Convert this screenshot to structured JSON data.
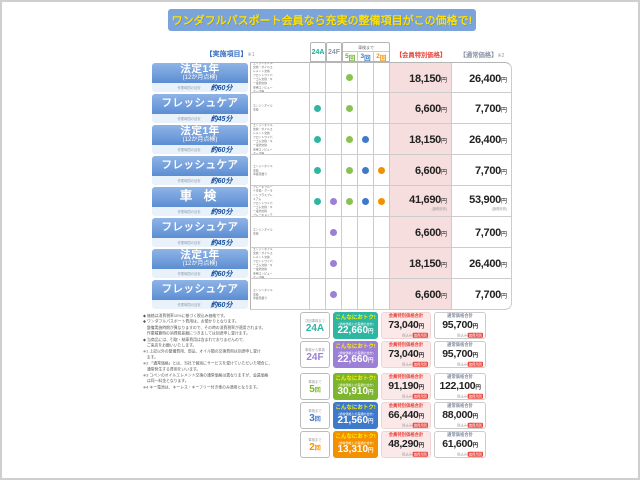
{
  "banner": {
    "text": "ワンダフルパスポート会員なら充実の整備項目がこの価格で!"
  },
  "yen": "円",
  "colors": {
    "banner_bg": "#7aa4da",
    "banner_text": "#ffe100",
    "accent_red": "#e8453c",
    "label_blue": "#5c8dd3",
    "member_price_bg": "#f7dede"
  },
  "dot_colors": [
    "#2eb6a3",
    "#9c7fd6",
    "#8cc152",
    "#3f79c9",
    "#f39000"
  ],
  "header": {
    "items_label": "【実施項目】",
    "items_note": "※1",
    "group_label": "車検まで",
    "cols": [
      {
        "num": "24A",
        "unit": "",
        "color": "#1fae9a"
      },
      {
        "num": "24F",
        "unit": "",
        "color": "#8e97a8"
      },
      {
        "num": "5",
        "unit": "回",
        "color": "#6fae2a"
      },
      {
        "num": "3",
        "unit": "回",
        "color": "#3f79c9"
      },
      {
        "num": "2",
        "unit": "回",
        "color": "#f39000"
      }
    ],
    "member_label": "【会員特別価格】",
    "normal_label": "【通常価格】",
    "normal_note": "※2"
  },
  "table": {
    "time_label": "作業時間の目安",
    "rows": [
      {
        "label": "法定1年",
        "sub": "(12か月点検)",
        "time": "約60分",
        "items": "エンジンオイル交換・オイルエレメント交換\nフロントワイパーゴム交換・キー電池交換\n専用コンピューター診断",
        "dots": [
          0,
          0,
          1,
          0,
          0
        ],
        "member": "18,150",
        "normal": "26,400",
        "note": ""
      },
      {
        "label": "フレッシュケア",
        "sub": "",
        "time": "約45分",
        "items": "エンジンオイル交換",
        "dots": [
          1,
          0,
          1,
          0,
          0
        ],
        "member": "6,600",
        "normal": "7,700",
        "note": ""
      },
      {
        "label": "法定1年",
        "sub": "(12か月点検)",
        "time": "約60分",
        "items": "エンジンオイル交換・オイルエレメント交換\nフロントワイパーゴム交換・キー電池交換\n専用コンピューター診断",
        "dots": [
          1,
          0,
          1,
          1,
          0
        ],
        "member": "18,150",
        "normal": "26,400",
        "note": ""
      },
      {
        "label": "フレッシュケア",
        "sub": "",
        "time": "約60分",
        "items": "エンジンオイル交換\n車検見積り",
        "dots": [
          1,
          0,
          1,
          1,
          1
        ],
        "member": "6,600",
        "normal": "7,700",
        "note": ""
      },
      {
        "label": "車 検",
        "sub": "",
        "time": "約90分",
        "items": "エンジンオイル交換・オイルエレメント交換\nブレーキフルード交換・クーラントプラスプレミアム\nフロントワイパーゴム交換・キー電池交換\nブレーキメンテナンスキット・専用コンピューター診断",
        "dots": [
          1,
          1,
          1,
          1,
          1
        ],
        "member": "41,690",
        "normal": "53,900",
        "note": "(諸費用別)"
      },
      {
        "label": "フレッシュケア",
        "sub": "",
        "time": "約45分",
        "items": "エンジンオイル交換",
        "dots": [
          0,
          1,
          0,
          0,
          0
        ],
        "member": "6,600",
        "normal": "7,700",
        "note": ""
      },
      {
        "label": "法定1年",
        "sub": "(12か月点検)",
        "time": "約60分",
        "items": "エンジンオイル交換・オイルエレメント交換\nフロントワイパーゴム交換・キー電池交換\n専用コンピューター診断",
        "dots": [
          0,
          1,
          0,
          0,
          0
        ],
        "member": "18,150",
        "normal": "26,400",
        "note": ""
      },
      {
        "label": "フレッシュケア",
        "sub": "",
        "time": "約60分",
        "items": "エンジンオイル交換\n車検見積り",
        "dots": [
          0,
          1,
          0,
          0,
          0
        ],
        "member": "6,600",
        "normal": "7,700",
        "note": ""
      }
    ]
  },
  "notes": {
    "text": "◆ 価格は消費税率10%に基づく税込み価格です。\n◆ ワンダフルパスポート費用は、お預かりとなります。\n　整備実施時期が異なりますので、その時の消費税率が適用されます。\n　作業精算時の消費税差額につきましては別途申し受けます。\n◆ 当商品には、引取・納車費用は含まれておりませんので、\n　ご来店をお願いいたします。\n※1 上記以外の整備費用、部品、オイル類の交換費用は別途申し受け\n　ます。\n※2 「通常価格」とは、当社で個別にサービスを受けていただいた場合に、\n　通常発生する費用をいいます。\n※3 コペンのオイルエレメント交換の通常価格は異なりますが、会員価格\n　は同一料金となります。\n※4 キー電池は、キーレス・キーフリー付き車のみ適用となります。"
  },
  "summary": {
    "otoku_label": "こんなにおトク!",
    "otoku_sub": "(通常価格との差額の合計)",
    "member_total_label": "会員特別価格合計",
    "normal_total_label": "通常価格合計",
    "tax_note": "税込み",
    "fee_badge": "諸費用別",
    "rows": [
      {
        "tag_num": "24A",
        "tag_unit": "",
        "tag_note": "次回車検まで",
        "color": "#2eb6a3",
        "saving": "22,660",
        "member_total": "73,040",
        "normal_total": "95,700"
      },
      {
        "tag_num": "24F",
        "tag_unit": "",
        "tag_note": "車検から車検",
        "color": "#9c7fd6",
        "saving": "22,660",
        "member_total": "73,040",
        "normal_total": "95,700"
      },
      {
        "tag_num": "5",
        "tag_unit": "回",
        "tag_note": "車検まで",
        "color": "#7db52e",
        "saving": "30,910",
        "member_total": "91,190",
        "normal_total": "122,100"
      },
      {
        "tag_num": "3",
        "tag_unit": "回",
        "tag_note": "車検まで",
        "color": "#3f79c9",
        "saving": "21,560",
        "member_total": "66,440",
        "normal_total": "88,000"
      },
      {
        "tag_num": "2",
        "tag_unit": "回",
        "tag_note": "車検まで",
        "color": "#f39000",
        "saving": "13,310",
        "member_total": "48,290",
        "normal_total": "61,600"
      }
    ]
  }
}
